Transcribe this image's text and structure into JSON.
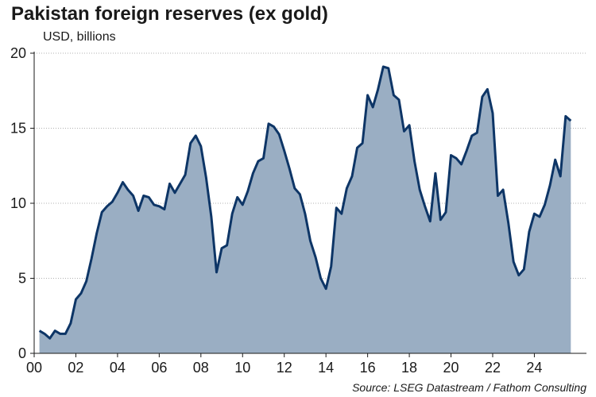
{
  "title": "Pakistan foreign reserves (ex gold)",
  "subtitle": "USD, billions",
  "source": "Source: LSEG Datastream / Fathom Consulting",
  "colors": {
    "fill": "#9aaec3",
    "line": "#0d3566",
    "grid": "#b0b0b0",
    "axis": "#1a1a1a"
  },
  "chart_data": {
    "type": "area",
    "title": "Pakistan foreign reserves (ex gold)",
    "ylabel": "USD, billions",
    "xlabel": "",
    "ylim": [
      0,
      20
    ],
    "y_ticks": [
      0,
      5,
      10,
      15,
      20
    ],
    "x_ticks": [
      "00",
      "02",
      "04",
      "06",
      "08",
      "10",
      "12",
      "14",
      "16",
      "18",
      "20",
      "22",
      "24"
    ],
    "grid": "horizontal dotted",
    "series": [
      {
        "x": [
          2000.25,
          2000.5,
          2000.75,
          2001.0,
          2001.25,
          2001.5,
          2001.75,
          2002.0,
          2002.25,
          2002.5,
          2002.75,
          2003.0,
          2003.25,
          2003.5,
          2003.75,
          2004.0,
          2004.25,
          2004.5,
          2004.75,
          2005.0,
          2005.25,
          2005.5,
          2005.75,
          2006.0,
          2006.25,
          2006.5,
          2006.75,
          2007.0,
          2007.25,
          2007.5,
          2007.75,
          2008.0,
          2008.25,
          2008.5,
          2008.75,
          2009.0,
          2009.25,
          2009.5,
          2009.75,
          2010.0,
          2010.25,
          2010.5,
          2010.75,
          2011.0,
          2011.25,
          2011.5,
          2011.75,
          2012.0,
          2012.25,
          2012.5,
          2012.75,
          2013.0,
          2013.25,
          2013.5,
          2013.75,
          2014.0,
          2014.25,
          2014.5,
          2014.75,
          2015.0,
          2015.25,
          2015.5,
          2015.75,
          2016.0,
          2016.25,
          2016.5,
          2016.75,
          2017.0,
          2017.25,
          2017.5,
          2017.75,
          2018.0,
          2018.25,
          2018.5,
          2018.75,
          2019.0,
          2019.25,
          2019.5,
          2019.75,
          2020.0,
          2020.25,
          2020.5,
          2020.75,
          2021.0,
          2021.25,
          2021.5,
          2021.75,
          2022.0,
          2022.25,
          2022.5,
          2022.75,
          2023.0,
          2023.25,
          2023.5,
          2023.75,
          2024.0,
          2024.25,
          2024.5,
          2024.75,
          2025.0,
          2025.25,
          2025.5,
          2025.75
        ],
        "values": [
          1.5,
          1.3,
          1.0,
          1.5,
          1.3,
          1.3,
          2.0,
          3.6,
          4.0,
          4.8,
          6.3,
          8.0,
          9.4,
          9.8,
          10.1,
          10.7,
          11.4,
          10.9,
          10.5,
          9.5,
          10.5,
          10.4,
          9.9,
          9.8,
          9.6,
          11.3,
          10.7,
          11.3,
          11.9,
          14.0,
          14.5,
          13.8,
          11.7,
          9.1,
          5.4,
          7.0,
          7.2,
          9.3,
          10.4,
          9.9,
          10.8,
          12.0,
          12.8,
          13.0,
          15.3,
          15.1,
          14.6,
          13.5,
          12.3,
          11.0,
          10.6,
          9.3,
          7.5,
          6.4,
          5.0,
          4.3,
          5.8,
          9.7,
          9.3,
          11.0,
          11.8,
          13.7,
          14.0,
          17.2,
          16.4,
          17.6,
          19.1,
          19.0,
          17.2,
          16.9,
          14.8,
          15.2,
          12.8,
          10.9,
          9.8,
          8.8,
          12.0,
          8.9,
          9.4,
          13.2,
          13.0,
          12.6,
          13.5,
          14.5,
          14.7,
          17.1,
          17.6,
          16.0,
          10.5,
          10.9,
          8.7,
          6.1,
          5.2,
          5.6,
          8.1,
          9.3,
          9.1,
          9.9,
          11.2,
          12.9,
          11.8,
          15.8,
          15.5
        ]
      }
    ]
  }
}
